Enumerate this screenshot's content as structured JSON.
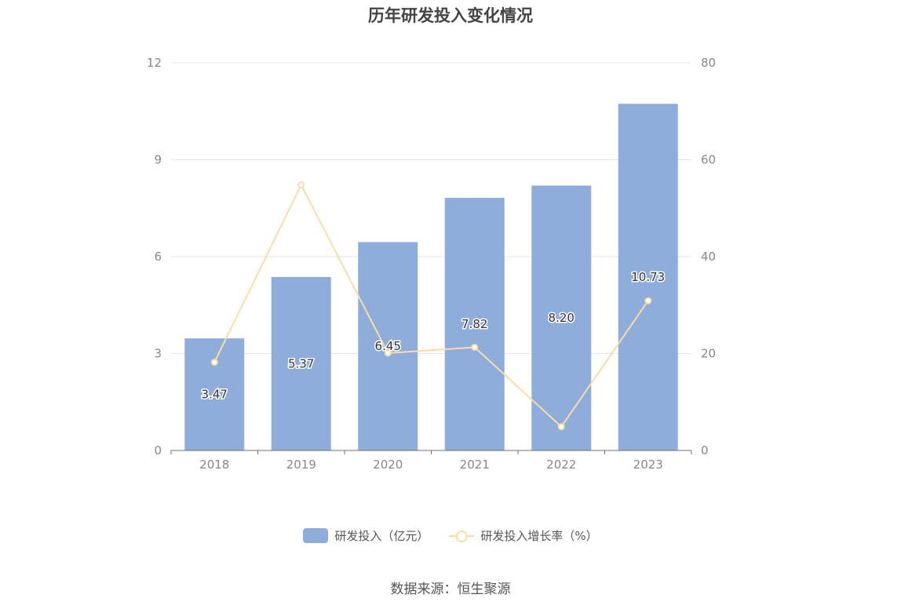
{
  "title": "历年研发投入变化情况",
  "source": "数据来源：恒生聚源",
  "colors": {
    "bar": "#8eaddb",
    "line": "#fbdca6",
    "grid": "#e3e6f0",
    "axis": "#888888"
  },
  "chart_data": {
    "type": "bar",
    "categories": [
      "2018",
      "2019",
      "2020",
      "2021",
      "2022",
      "2023"
    ],
    "series": [
      {
        "name": "研发投入（亿元）",
        "type": "bar",
        "axis": "left",
        "values": [
          3.47,
          5.37,
          6.45,
          7.82,
          8.2,
          10.73
        ],
        "labels": [
          "3.47",
          "5.37",
          "6.45",
          "7.82",
          "8.20",
          "10.73"
        ]
      },
      {
        "name": "研发投入增长率（%）",
        "type": "line",
        "axis": "right",
        "values": [
          18.2,
          54.8,
          20.1,
          21.3,
          4.9,
          30.9
        ]
      }
    ],
    "y_left": {
      "ticks": [
        "0",
        "3",
        "6",
        "9",
        "12"
      ],
      "range": [
        0,
        12
      ]
    },
    "y_right": {
      "ticks": [
        "0",
        "20",
        "40",
        "60",
        "80"
      ],
      "range": [
        0,
        80
      ]
    },
    "legend": "bottom-center",
    "grid": true
  }
}
